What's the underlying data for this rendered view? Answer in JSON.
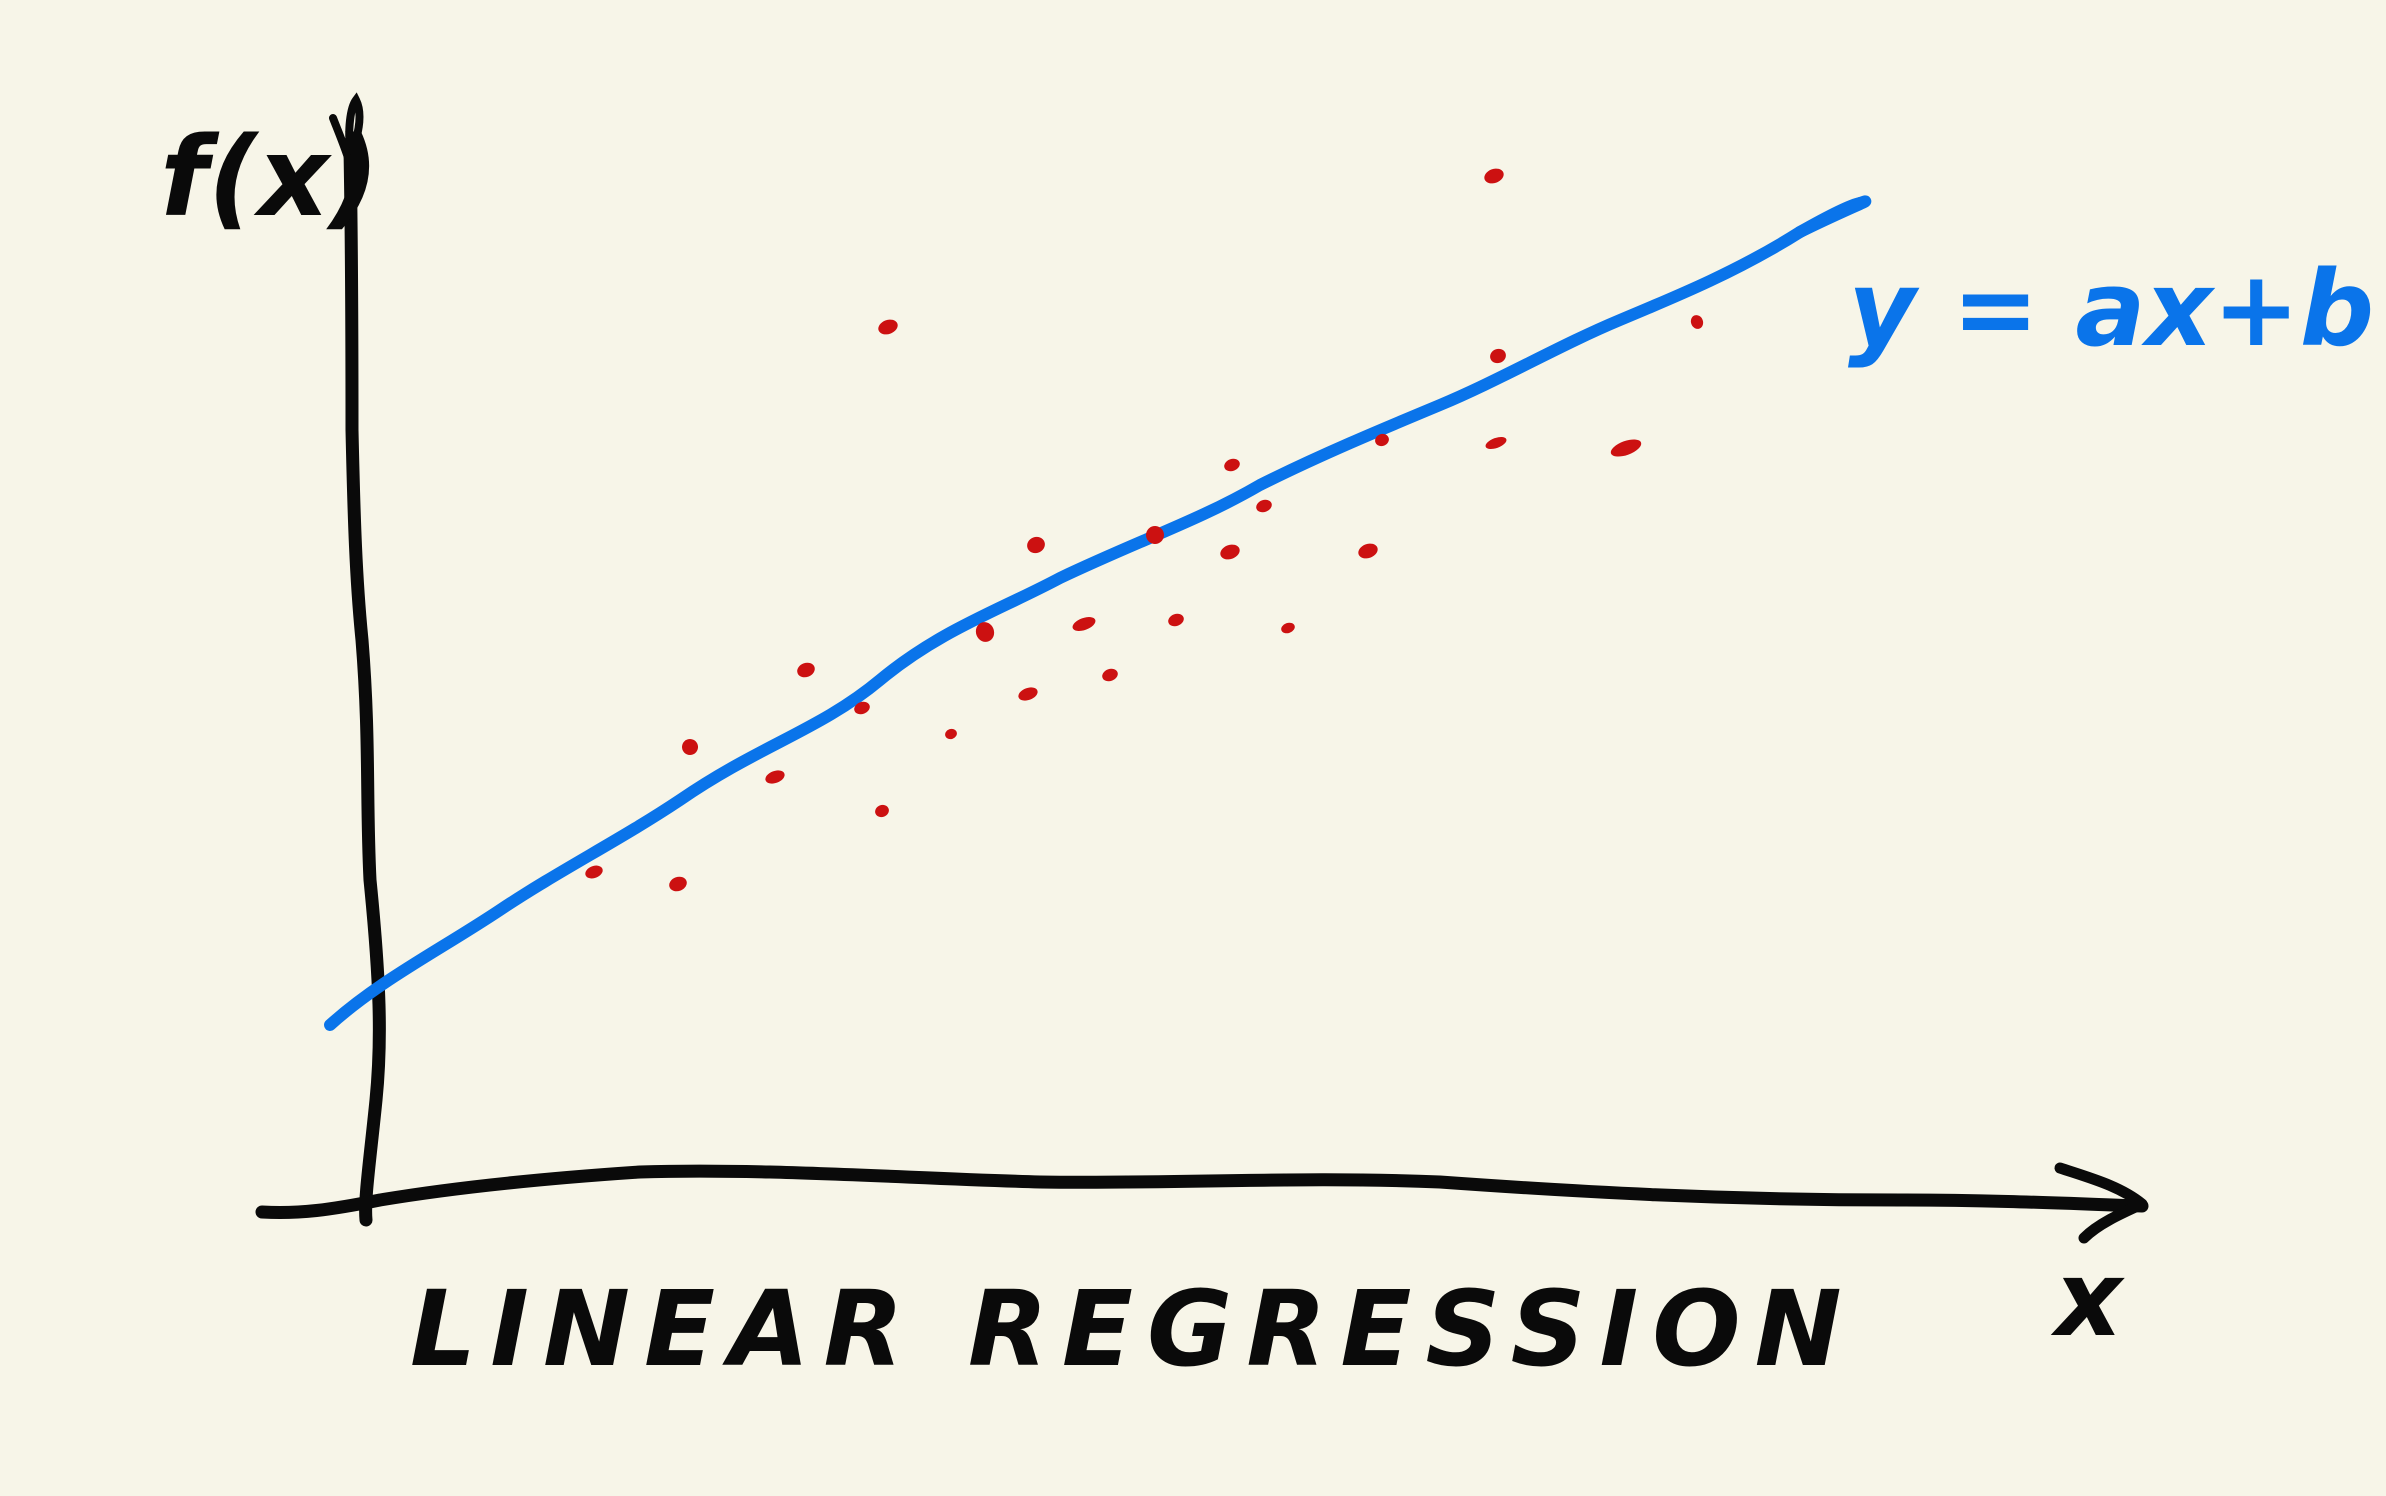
{
  "chart_data": {
    "type": "scatter",
    "title": "LINEAR REGRESSION",
    "xlabel": "x",
    "ylabel": "f(x)",
    "grid": false,
    "legend": "none",
    "fit_line": {
      "label": "y = ax+b",
      "color": "#0a74ea"
    },
    "point_color": "#cc1111",
    "axis_color": "#0a0a0a",
    "background": "#f7f5e8"
  }
}
